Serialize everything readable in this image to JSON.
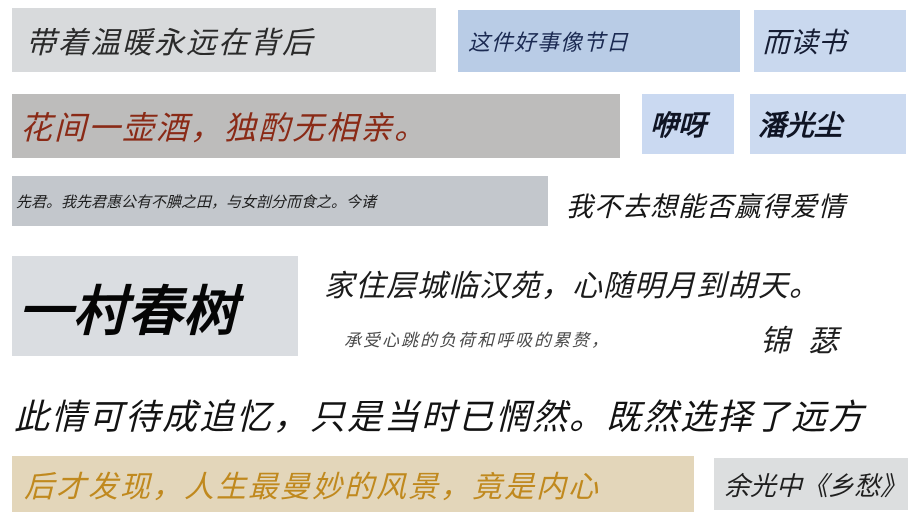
{
  "samples": [
    {
      "text": "带着温暖永远在背后"
    },
    {
      "text": "这件好事像节日"
    },
    {
      "text": "而读书"
    },
    {
      "text": "花间一壶酒，独酌无相亲。"
    },
    {
      "text": "咿呀"
    },
    {
      "text": "潘光尘"
    },
    {
      "text": "先君。我先君惠公有不腆之田，与女剖分而食之。今诸"
    },
    {
      "text": "我不去想能否赢得爱情"
    },
    {
      "text": "一村春树"
    },
    {
      "text": "家住层城临汉苑，心随明月到胡天。"
    },
    {
      "text": "承受心跳的负荷和呼吸的累赘，"
    },
    {
      "text": "锦瑟"
    },
    {
      "text": "此情可待成追忆，只是当时已惘然。既然选择了远方"
    },
    {
      "text": "后才发现，人生最曼妙的风景，竟是内心"
    },
    {
      "text": "余光中《乡愁》"
    }
  ]
}
